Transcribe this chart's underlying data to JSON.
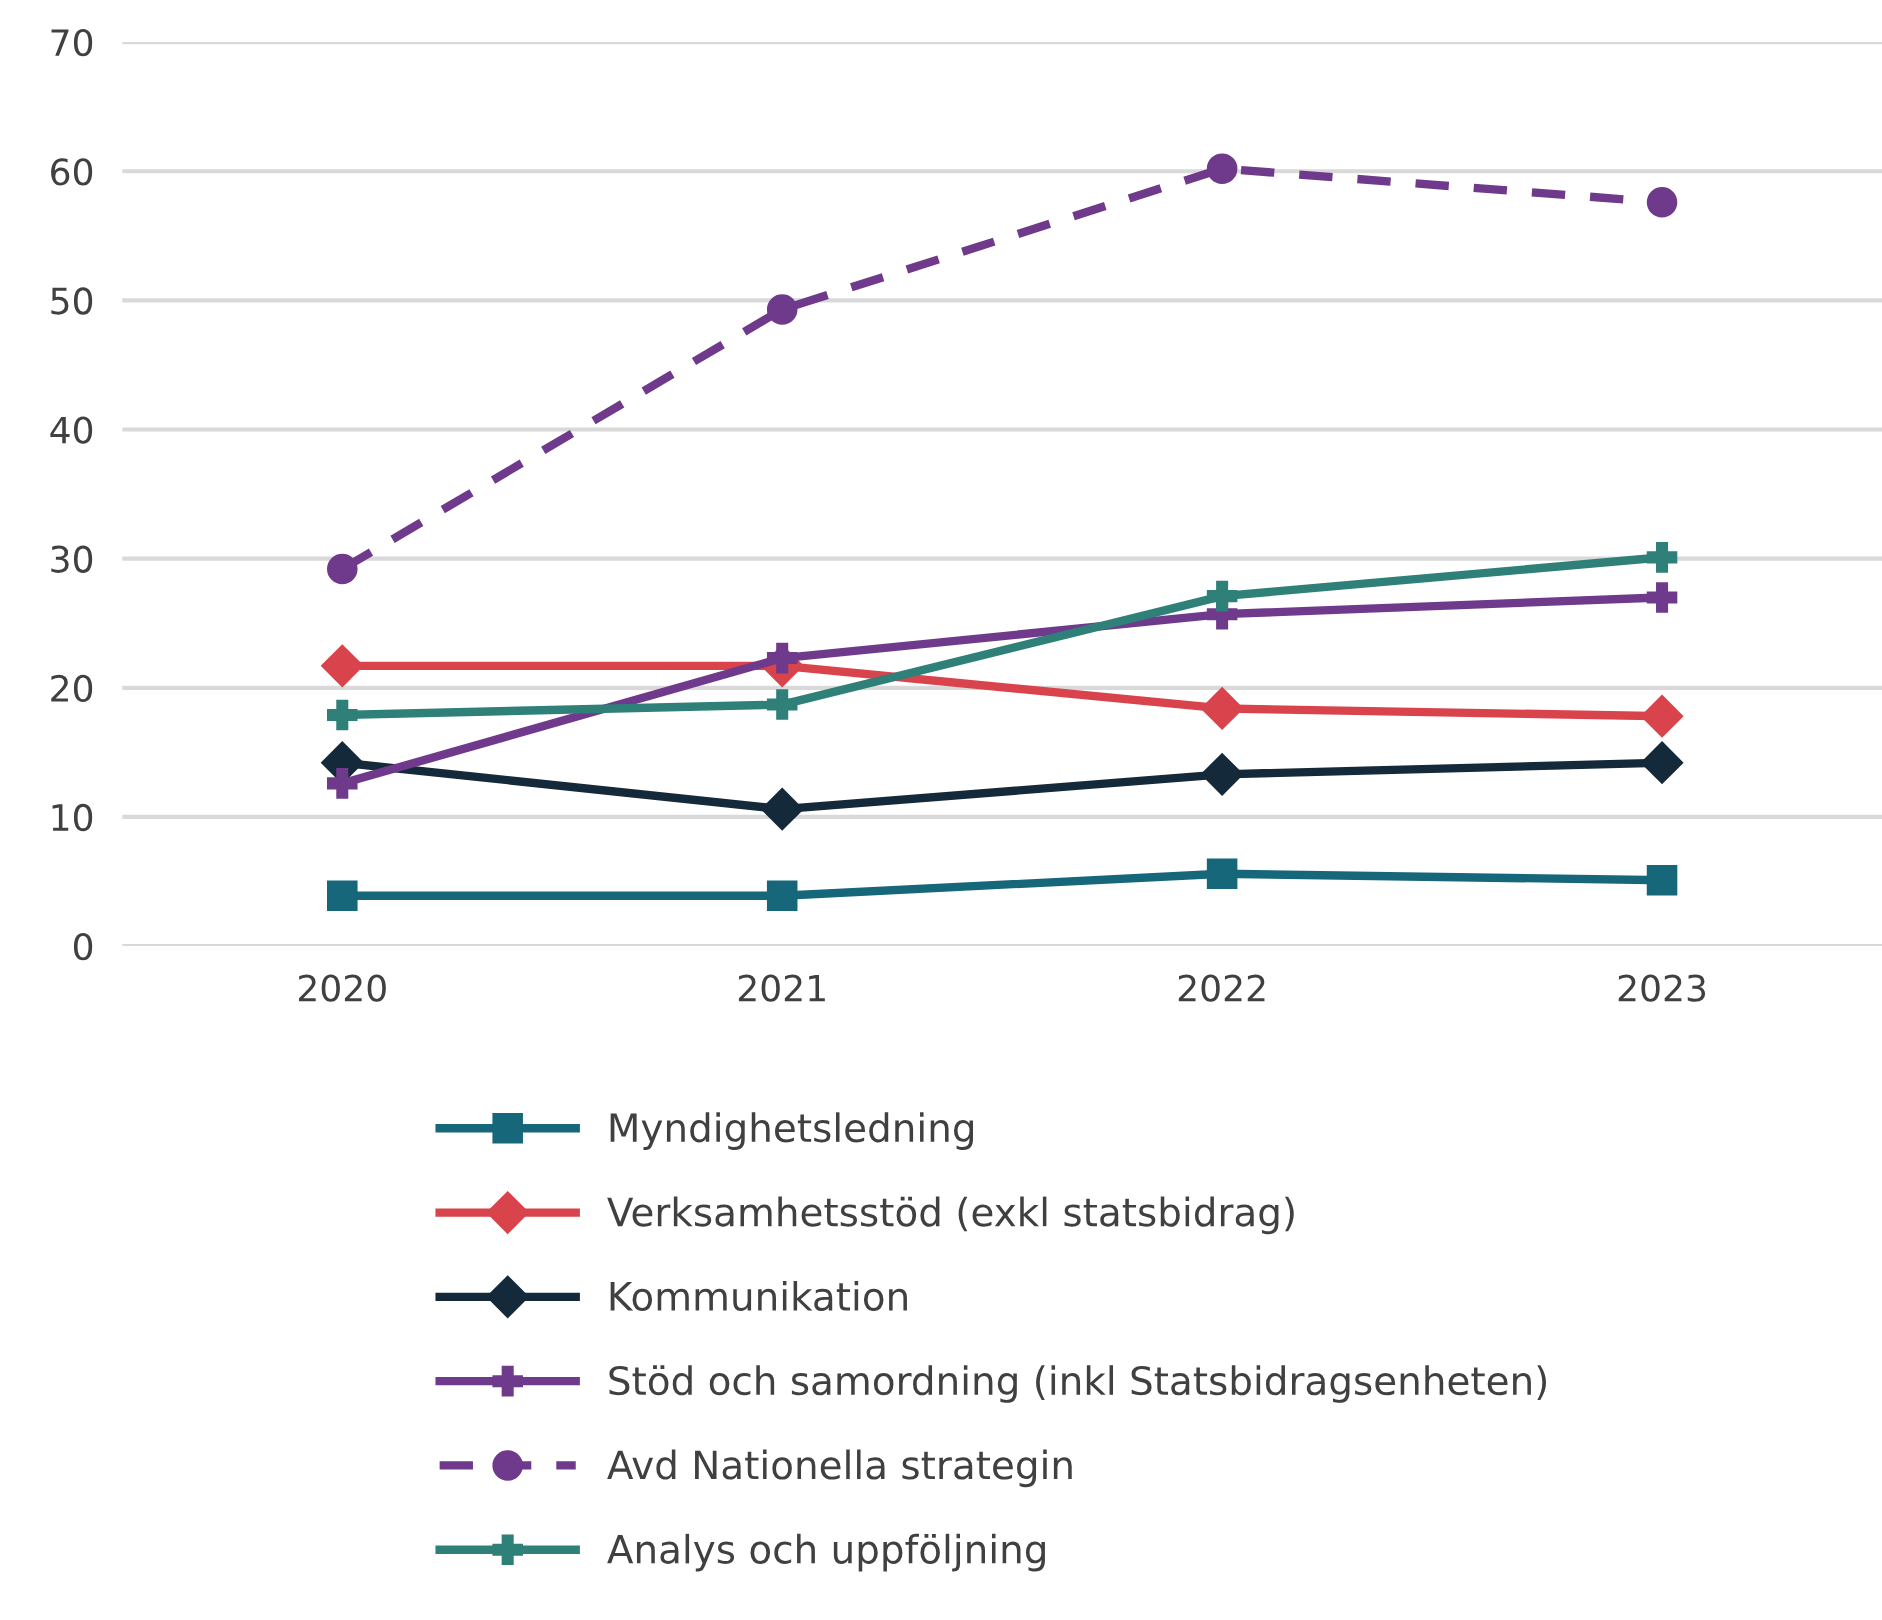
{
  "chart_data": {
    "type": "line",
    "categories": [
      "2020",
      "2021",
      "2022",
      "2023"
    ],
    "series": [
      {
        "name": "Myndighetsledning",
        "color": "#17677a",
        "marker": "square",
        "values": [
          3.9,
          3.9,
          5.6,
          5.1
        ]
      },
      {
        "name": "Verksamhetsstöd (exkl statsbidrag)",
        "color": "#d9434b",
        "marker": "diamond",
        "values": [
          21.7,
          21.7,
          18.4,
          17.8
        ]
      },
      {
        "name": "Kommunikation",
        "color": "#14293a",
        "marker": "diamond",
        "values": [
          14.2,
          10.6,
          13.3,
          14.2
        ]
      },
      {
        "name": "Stöd och samordning (inkl Statsbidragsenheten)",
        "color": "#6f3a8c",
        "marker": "cross",
        "values": [
          12.6,
          22.3,
          25.7,
          27.0
        ]
      },
      {
        "name": "Avd Nationella strategin",
        "color": "#6f3a8c",
        "marker": "circle",
        "line_style": "dashed",
        "values": [
          29.2,
          49.3,
          60.2,
          57.6
        ]
      },
      {
        "name": "Analys och uppföljning",
        "color": "#2e8078",
        "marker": "cross",
        "values": [
          17.9,
          18.7,
          27.1,
          30.1
        ]
      }
    ],
    "ylim": [
      0,
      70
    ],
    "yticks": [
      0,
      10,
      20,
      30,
      40,
      50,
      60,
      70
    ],
    "grid": "y",
    "legend": "bottom"
  }
}
